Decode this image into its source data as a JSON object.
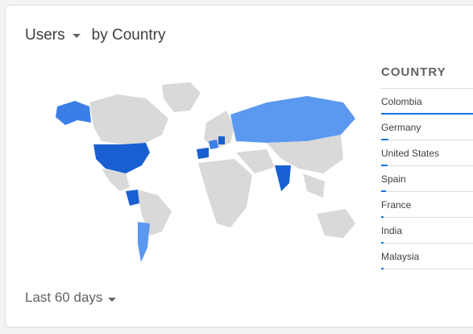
{
  "card": {
    "metric_label": "Users",
    "dimension_label": "by Country",
    "date_range_label": "Last 60 days"
  },
  "table": {
    "column_header": "COUNTRY",
    "rows": [
      {
        "label": "Colombia",
        "share": 1.0
      },
      {
        "label": "Germany",
        "share": 0.08
      },
      {
        "label": "United States",
        "share": 0.07
      },
      {
        "label": "Spain",
        "share": 0.05
      },
      {
        "label": "France",
        "share": 0.02
      },
      {
        "label": "India",
        "share": 0.02
      },
      {
        "label": "Malaysia",
        "share": 0.02
      }
    ]
  },
  "colors": {
    "map_base": "#d9d9d9",
    "map_dark": "#1a5fd1",
    "map_mid": "#3b7ee8",
    "map_light": "#5b98f0",
    "accent": "#1a73e8"
  }
}
